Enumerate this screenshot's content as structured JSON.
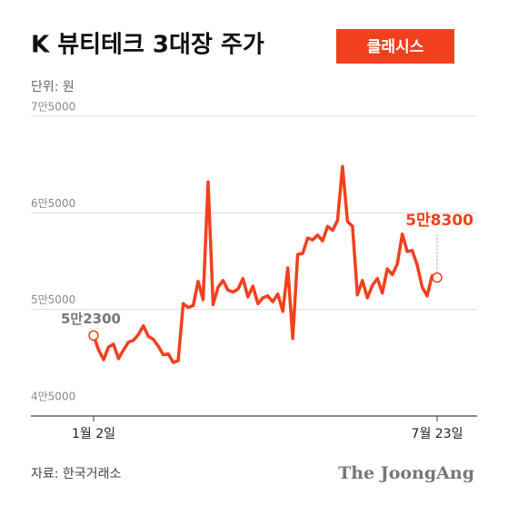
{
  "chart_data": {
    "type": "line",
    "title": "K 뷰티테크 3대장 주가",
    "badge": "클래시스",
    "unit": "단위: 원",
    "source": "자료: 한국거래소",
    "brand": "The JoongAng",
    "color": "#f2401e",
    "grid": true,
    "categories": [
      "1월 2일",
      null,
      null,
      null,
      null,
      null,
      null,
      null,
      null,
      null,
      null,
      null,
      null,
      null,
      null,
      null,
      null,
      null,
      null,
      null,
      null,
      null,
      null,
      null,
      null,
      null,
      null,
      null,
      null,
      null,
      null,
      null,
      null,
      null,
      null,
      null,
      null,
      null,
      null,
      null,
      null,
      null,
      null,
      null,
      null,
      null,
      null,
      null,
      null,
      null,
      null,
      null,
      null,
      null,
      null,
      null,
      null,
      null,
      null,
      null,
      null,
      null,
      null,
      null,
      null,
      null,
      null,
      null,
      null,
      "7월 23일"
    ],
    "values": [
      52300,
      50800,
      49800,
      51100,
      51400,
      49900,
      50800,
      51600,
      51800,
      52400,
      53300,
      52200,
      51900,
      51200,
      50300,
      50400,
      49500,
      49700,
      55600,
      55200,
      55400,
      57900,
      56000,
      68200,
      55500,
      57300,
      58000,
      57000,
      56800,
      57100,
      58200,
      56300,
      57400,
      55600,
      56200,
      56400,
      55800,
      56600,
      54800,
      59300,
      52000,
      60700,
      60800,
      62400,
      62200,
      62700,
      62100,
      63600,
      63200,
      64200,
      69800,
      64100,
      63600,
      56500,
      58000,
      56200,
      57500,
      58200,
      56700,
      59200,
      58600,
      59700,
      62800,
      61000,
      61100,
      59600,
      57300,
      56400,
      58500,
      58300
    ],
    "value_labels": [
      "5만2300",
      null,
      null,
      null,
      null,
      null,
      null,
      null,
      null,
      null,
      null,
      null,
      null,
      null,
      null,
      null,
      null,
      null,
      null,
      null,
      null,
      null,
      null,
      null,
      null,
      null,
      null,
      null,
      null,
      null,
      null,
      null,
      null,
      null,
      null,
      null,
      null,
      null,
      null,
      null,
      null,
      null,
      null,
      null,
      null,
      null,
      null,
      null,
      null,
      null,
      null,
      null,
      null,
      null,
      null,
      null,
      null,
      null,
      null,
      null,
      null,
      null,
      null,
      null,
      null,
      null,
      null,
      null,
      null,
      "5만8300"
    ],
    "ylim": [
      45000,
      75000
    ],
    "yticks": [
      {
        "value": 45000,
        "label": "4만5000"
      },
      {
        "value": 55000,
        "label": "5만5000"
      },
      {
        "value": 65000,
        "label": "6만5000"
      },
      {
        "value": 75000,
        "label": "7만5000"
      }
    ]
  }
}
